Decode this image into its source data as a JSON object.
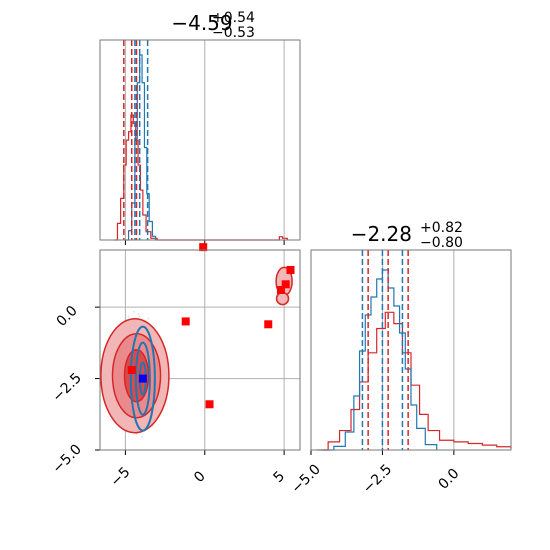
{
  "chart_data": {
    "type": "corner",
    "colors": {
      "blue": "#1f77b4",
      "red": "#d62728",
      "grid": "#b0b0b0",
      "marker_red": "#ff0000",
      "marker_blue": "#0000ff"
    },
    "titles": [
      {
        "base": "−4.59",
        "plus": "+0.54",
        "minus": "−0.53"
      },
      {
        "base": "−2.28",
        "plus": "+0.82",
        "minus": "−0.80"
      }
    ],
    "xlim_param0": [
      -6.6,
      6.0
    ],
    "xlim_param1": [
      -5.0,
      2.0
    ],
    "ylim_scatter": [
      -5.0,
      2.0
    ],
    "ticks_param0": [
      {
        "value": -5,
        "label": "−5"
      },
      {
        "value": 0,
        "label": "0"
      },
      {
        "value": 5,
        "label": "5"
      }
    ],
    "ticks_param1_y": [
      {
        "value": 0,
        "label": "0.0"
      },
      {
        "value": -2.5,
        "label": "−2.5"
      },
      {
        "value": -5,
        "label": "−5.0"
      }
    ],
    "ticks_param1_x": [
      {
        "value": -5,
        "label": "−5.0"
      },
      {
        "value": -2.5,
        "label": "−2.5"
      },
      {
        "value": 0,
        "label": "0.0"
      }
    ],
    "quantiles_param0": {
      "blue": [
        -4.4,
        -4.1,
        -3.6
      ],
      "red": [
        -5.1,
        -4.6,
        -4.3
      ]
    },
    "quantiles_param1": {
      "blue": [
        -3.2,
        -2.5,
        -1.8
      ],
      "red": [
        -3.0,
        -2.3,
        -1.6
      ]
    },
    "hist0_blue": [
      [
        -5.0,
        0
      ],
      [
        -4.8,
        0.05
      ],
      [
        -4.6,
        0.2
      ],
      [
        -4.4,
        0.55
      ],
      [
        -4.25,
        0.85
      ],
      [
        -4.1,
        1.0
      ],
      [
        -3.95,
        0.85
      ],
      [
        -3.8,
        0.5
      ],
      [
        -3.65,
        0.25
      ],
      [
        -3.5,
        0.1
      ],
      [
        -3.3,
        0.02
      ],
      [
        -3.1,
        0
      ]
    ],
    "hist0_red": [
      [
        -5.7,
        0
      ],
      [
        -5.5,
        0.1
      ],
      [
        -5.3,
        0.25
      ],
      [
        -5.1,
        0.45
      ],
      [
        -4.95,
        0.6
      ],
      [
        -4.8,
        0.65
      ],
      [
        -4.65,
        0.75
      ],
      [
        -4.5,
        0.7
      ],
      [
        -4.35,
        0.6
      ],
      [
        -4.2,
        0.45
      ],
      [
        -4.05,
        0.3
      ],
      [
        -3.9,
        0.15
      ],
      [
        -3.7,
        0.05
      ],
      [
        -3.4,
        0.01
      ],
      [
        -3.0,
        0
      ],
      [
        4.5,
        0
      ],
      [
        4.7,
        0.02
      ],
      [
        4.9,
        0.01
      ],
      [
        5.2,
        0
      ]
    ],
    "hist1_blue": [
      [
        -4.6,
        0
      ],
      [
        -4.2,
        0.02
      ],
      [
        -3.8,
        0.1
      ],
      [
        -3.5,
        0.3
      ],
      [
        -3.3,
        0.55
      ],
      [
        -3.1,
        0.75
      ],
      [
        -2.9,
        0.85
      ],
      [
        -2.7,
        0.95
      ],
      [
        -2.5,
        1.0
      ],
      [
        -2.3,
        0.9
      ],
      [
        -2.1,
        0.8
      ],
      [
        -1.9,
        0.65
      ],
      [
        -1.7,
        0.45
      ],
      [
        -1.5,
        0.25
      ],
      [
        -1.3,
        0.12
      ],
      [
        -1.0,
        0.03
      ],
      [
        -0.6,
        0
      ]
    ],
    "hist1_red": [
      [
        -4.8,
        0
      ],
      [
        -4.4,
        0.05
      ],
      [
        -4.0,
        0.12
      ],
      [
        -3.6,
        0.25
      ],
      [
        -3.3,
        0.42
      ],
      [
        -3.0,
        0.6
      ],
      [
        -2.7,
        0.75
      ],
      [
        -2.4,
        0.85
      ],
      [
        -2.1,
        0.78
      ],
      [
        -1.8,
        0.6
      ],
      [
        -1.5,
        0.4
      ],
      [
        -1.2,
        0.22
      ],
      [
        -0.9,
        0.12
      ],
      [
        -0.5,
        0.06
      ],
      [
        0.0,
        0.05
      ],
      [
        0.5,
        0.04
      ],
      [
        1.0,
        0.03
      ],
      [
        1.5,
        0.02
      ],
      [
        2.0,
        0.01
      ]
    ],
    "red_outliers": [
      [
        -1.2,
        -0.5
      ],
      [
        4.0,
        -0.6
      ],
      [
        5.1,
        0.8
      ],
      [
        5.4,
        1.3
      ],
      [
        4.8,
        0.6
      ],
      [
        0.3,
        -3.4
      ],
      [
        -4.6,
        -2.2
      ],
      [
        -0.1,
        2.1
      ]
    ],
    "blue_marker": [
      -3.9,
      -2.5
    ]
  }
}
